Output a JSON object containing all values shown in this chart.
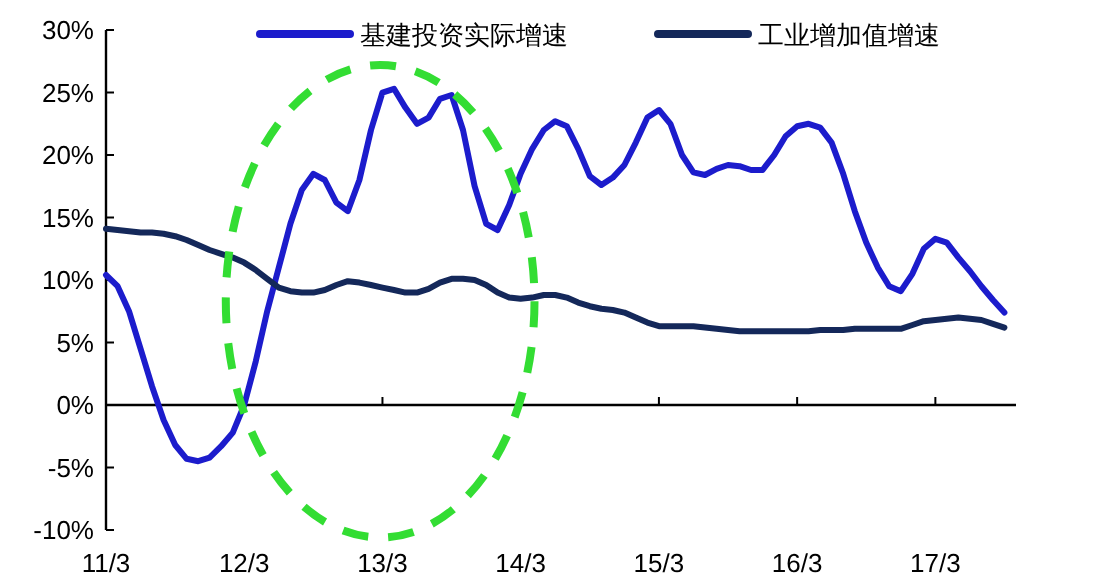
{
  "chart_data": {
    "type": "line",
    "legend": "top",
    "ref_lines": [
      {
        "axis": "y",
        "value": 0,
        "color": "#000000"
      }
    ],
    "marker": "none",
    "line_style": "solid",
    "grid": false,
    "categories": [
      "11/3",
      null,
      null,
      null,
      null,
      null,
      null,
      null,
      null,
      null,
      null,
      null,
      "12/3",
      null,
      null,
      null,
      null,
      null,
      null,
      null,
      null,
      null,
      null,
      null,
      "13/3",
      null,
      null,
      null,
      null,
      null,
      null,
      null,
      null,
      null,
      null,
      null,
      "14/3",
      null,
      null,
      null,
      null,
      null,
      null,
      null,
      null,
      null,
      null,
      null,
      "15/3",
      null,
      null,
      null,
      null,
      null,
      null,
      null,
      null,
      null,
      null,
      null,
      "16/3",
      null,
      null,
      null,
      null,
      null,
      null,
      null,
      null,
      null,
      null,
      null,
      "17/3",
      null,
      null,
      null,
      null,
      null,
      null
    ],
    "ylim": [
      -10,
      30
    ],
    "yticks": [
      {
        "value": -10,
        "label": "-10%"
      },
      {
        "value": -5,
        "label": "-5%"
      },
      {
        "value": 0,
        "label": "0%"
      },
      {
        "value": 5,
        "label": "5%"
      },
      {
        "value": 10,
        "label": "10%"
      },
      {
        "value": 15,
        "label": "15%"
      },
      {
        "value": 20,
        "label": "20%"
      },
      {
        "value": 25,
        "label": "25%"
      },
      {
        "value": 30,
        "label": "30%"
      }
    ],
    "series": [
      {
        "name": "基建投资实际增速",
        "color": "#1c1ccc",
        "values": [
          10.4,
          9.5,
          7.5,
          4.5,
          1.5,
          -1.2,
          -3.2,
          -4.3,
          -4.5,
          -4.2,
          -3.3,
          -2.2,
          0,
          3.5,
          7.5,
          11.0,
          14.5,
          17.2,
          18.5,
          18.0,
          16.2,
          15.5,
          18.0,
          22.0,
          25.0,
          25.3,
          23.8,
          22.5,
          23.0,
          24.5,
          24.8,
          22.0,
          17.5,
          14.5,
          14.0,
          16.0,
          18.5,
          20.5,
          22.0,
          22.7,
          22.3,
          20.5,
          18.3,
          17.6,
          18.2,
          19.2,
          21.0,
          23.0,
          23.6,
          22.5,
          20.0,
          18.6,
          18.4,
          18.9,
          19.2,
          19.1,
          18.8,
          18.8,
          20.0,
          21.5,
          22.3,
          22.5,
          22.2,
          21.0,
          18.5,
          15.5,
          13.0,
          11.0,
          9.5,
          9.1,
          10.5,
          12.5,
          13.3,
          13.0,
          11.8,
          10.7,
          9.5,
          8.4,
          7.4
        ]
      },
      {
        "name": "工业增加值增速",
        "color": "#14285a",
        "values": [
          14.1,
          14.0,
          13.9,
          13.8,
          13.8,
          13.7,
          13.5,
          13.2,
          12.8,
          12.4,
          12.1,
          11.8,
          11.4,
          10.8,
          10.1,
          9.4,
          9.1,
          9.0,
          9.0,
          9.2,
          9.6,
          9.9,
          9.8,
          9.6,
          9.4,
          9.2,
          9.0,
          9.0,
          9.3,
          9.8,
          10.1,
          10.1,
          10.0,
          9.6,
          9.0,
          8.6,
          8.5,
          8.6,
          8.8,
          8.8,
          8.6,
          8.2,
          7.9,
          7.7,
          7.6,
          7.4,
          7.0,
          6.6,
          6.3,
          6.3,
          6.3,
          6.3,
          6.2,
          6.1,
          6.0,
          5.9,
          5.9,
          5.9,
          5.9,
          5.9,
          5.9,
          5.9,
          6.0,
          6.0,
          6.0,
          6.1,
          6.1,
          6.1,
          6.1,
          6.1,
          6.4,
          6.7,
          6.8,
          6.9,
          7.0,
          6.9,
          6.8,
          6.5,
          6.2
        ]
      }
    ]
  }
}
